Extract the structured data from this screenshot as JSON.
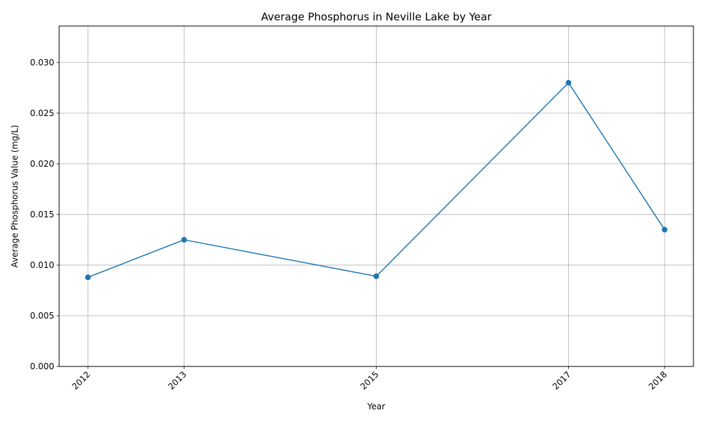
{
  "chart_data": {
    "type": "line",
    "title": "Average Phosphorus in Neville Lake by Year",
    "xlabel": "Year",
    "ylabel": "Average Phosphorus Value (mg/L)",
    "x": [
      2012,
      2013,
      2015,
      2017,
      2018
    ],
    "x_tick_labels": [
      "2012",
      "2013",
      "2015",
      "2017",
      "2018"
    ],
    "xlim": [
      2011.7,
      2018.3
    ],
    "y_ticks": [
      0,
      0.005,
      0.01,
      0.015,
      0.02,
      0.025,
      0.03
    ],
    "y_tick_labels": [
      "0.000",
      "0.005",
      "0.010",
      "0.015",
      "0.020",
      "0.025",
      "0.030"
    ],
    "ylim": [
      0,
      0.0336
    ],
    "series": [
      {
        "values": [
          0.0088,
          0.0125,
          0.0089,
          0.028,
          0.0135
        ],
        "color": "#1f77b4",
        "marker": "circle"
      }
    ],
    "grid": true,
    "legend": "none"
  }
}
